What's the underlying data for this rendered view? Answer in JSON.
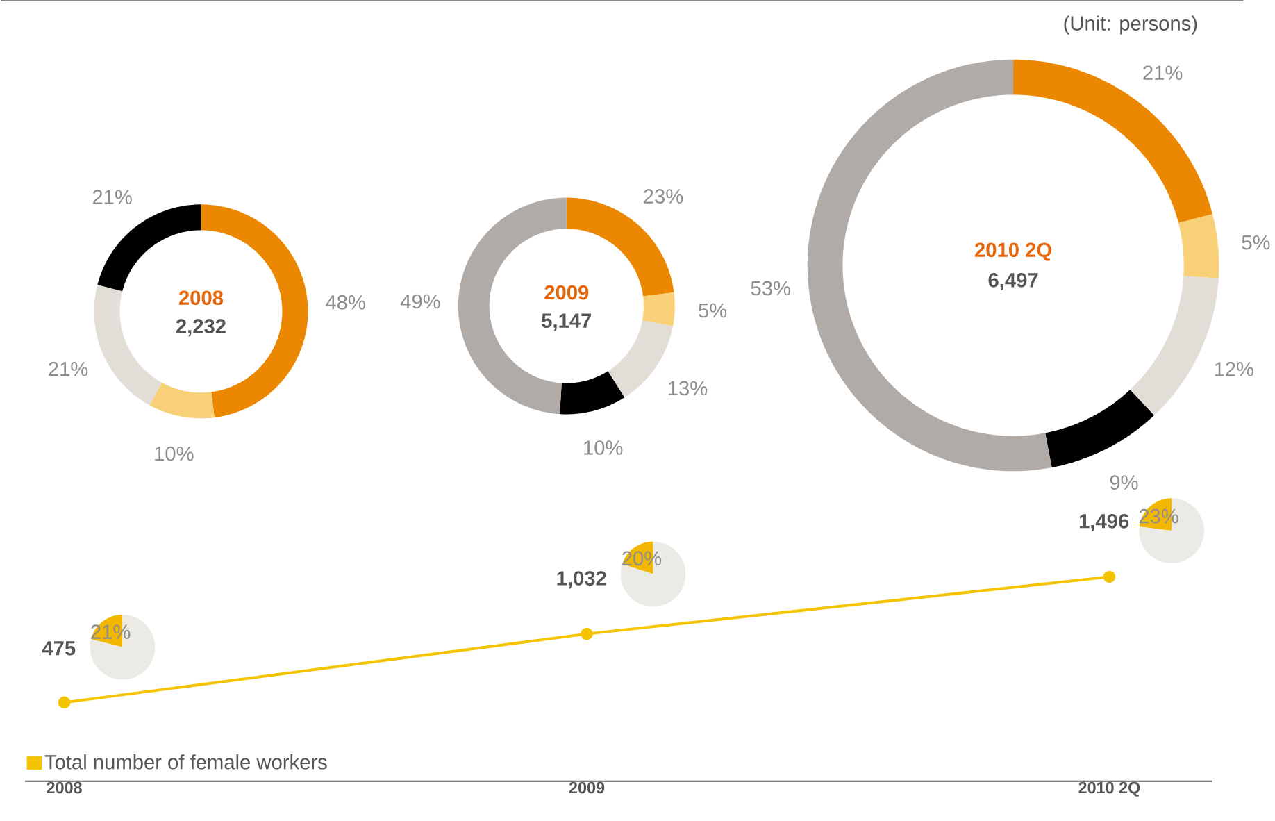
{
  "chart_data": [
    {
      "type": "donut",
      "title": "2008",
      "subtitle": "2,232",
      "annotations": [
        "(Unit: persons)"
      ],
      "categories": [
        null,
        null,
        null,
        null
      ],
      "values": [
        48,
        10,
        21,
        21
      ],
      "value_labels": [
        "48%",
        "10%",
        "21%",
        "21%"
      ],
      "colors": [
        "#eb8700",
        "#f7d078",
        "#e2ded7",
        "#000000"
      ]
    },
    {
      "type": "donut",
      "title": "2009",
      "subtitle": "5,147",
      "categories": [
        null,
        null,
        null,
        null,
        null
      ],
      "values": [
        23,
        5,
        13,
        10,
        49
      ],
      "value_labels": [
        "23%",
        "5%",
        "13%",
        "10%",
        "49%"
      ],
      "colors": [
        "#eb8700",
        "#f7d078",
        "#e2ded7",
        "#000000",
        "#b1aba8"
      ]
    },
    {
      "type": "donut",
      "title": "2010 2Q",
      "subtitle": "6,497",
      "categories": [
        null,
        null,
        null,
        null,
        null
      ],
      "values": [
        21,
        5,
        12,
        9,
        53
      ],
      "value_labels": [
        "21%",
        "5%",
        "12%",
        "9%",
        "53%"
      ],
      "colors": [
        "#eb8700",
        "#f7d078",
        "#e2ded7",
        "#000000",
        "#b1aba8"
      ]
    },
    {
      "type": "line",
      "categories": [
        "2008",
        "2009",
        "2010 2Q"
      ],
      "marker": "circle",
      "legend": "bottom left",
      "tick_labels": "x",
      "series": [
        {
          "name": "Total number of female workers",
          "color": "#f5c400",
          "values": [
            475,
            1032,
            1496
          ],
          "value_labels": [
            "475",
            "1,032",
            "1,496"
          ]
        }
      ]
    },
    {
      "type": "pie",
      "categories": [
        null,
        null
      ],
      "values": [
        21,
        79
      ],
      "value_labels": [
        "21%",
        null
      ],
      "colors": [
        "#f2b700",
        "#eceae5"
      ]
    },
    {
      "type": "pie",
      "categories": [
        null,
        null
      ],
      "values": [
        20,
        80
      ],
      "value_labels": [
        "20%",
        null
      ],
      "colors": [
        "#f2b700",
        "#eceae5"
      ]
    },
    {
      "type": "pie",
      "categories": [
        null,
        null
      ],
      "values": [
        23,
        77
      ],
      "value_labels": [
        "23%",
        null
      ],
      "colors": [
        "#f2b700",
        "#eceae5"
      ]
    }
  ]
}
